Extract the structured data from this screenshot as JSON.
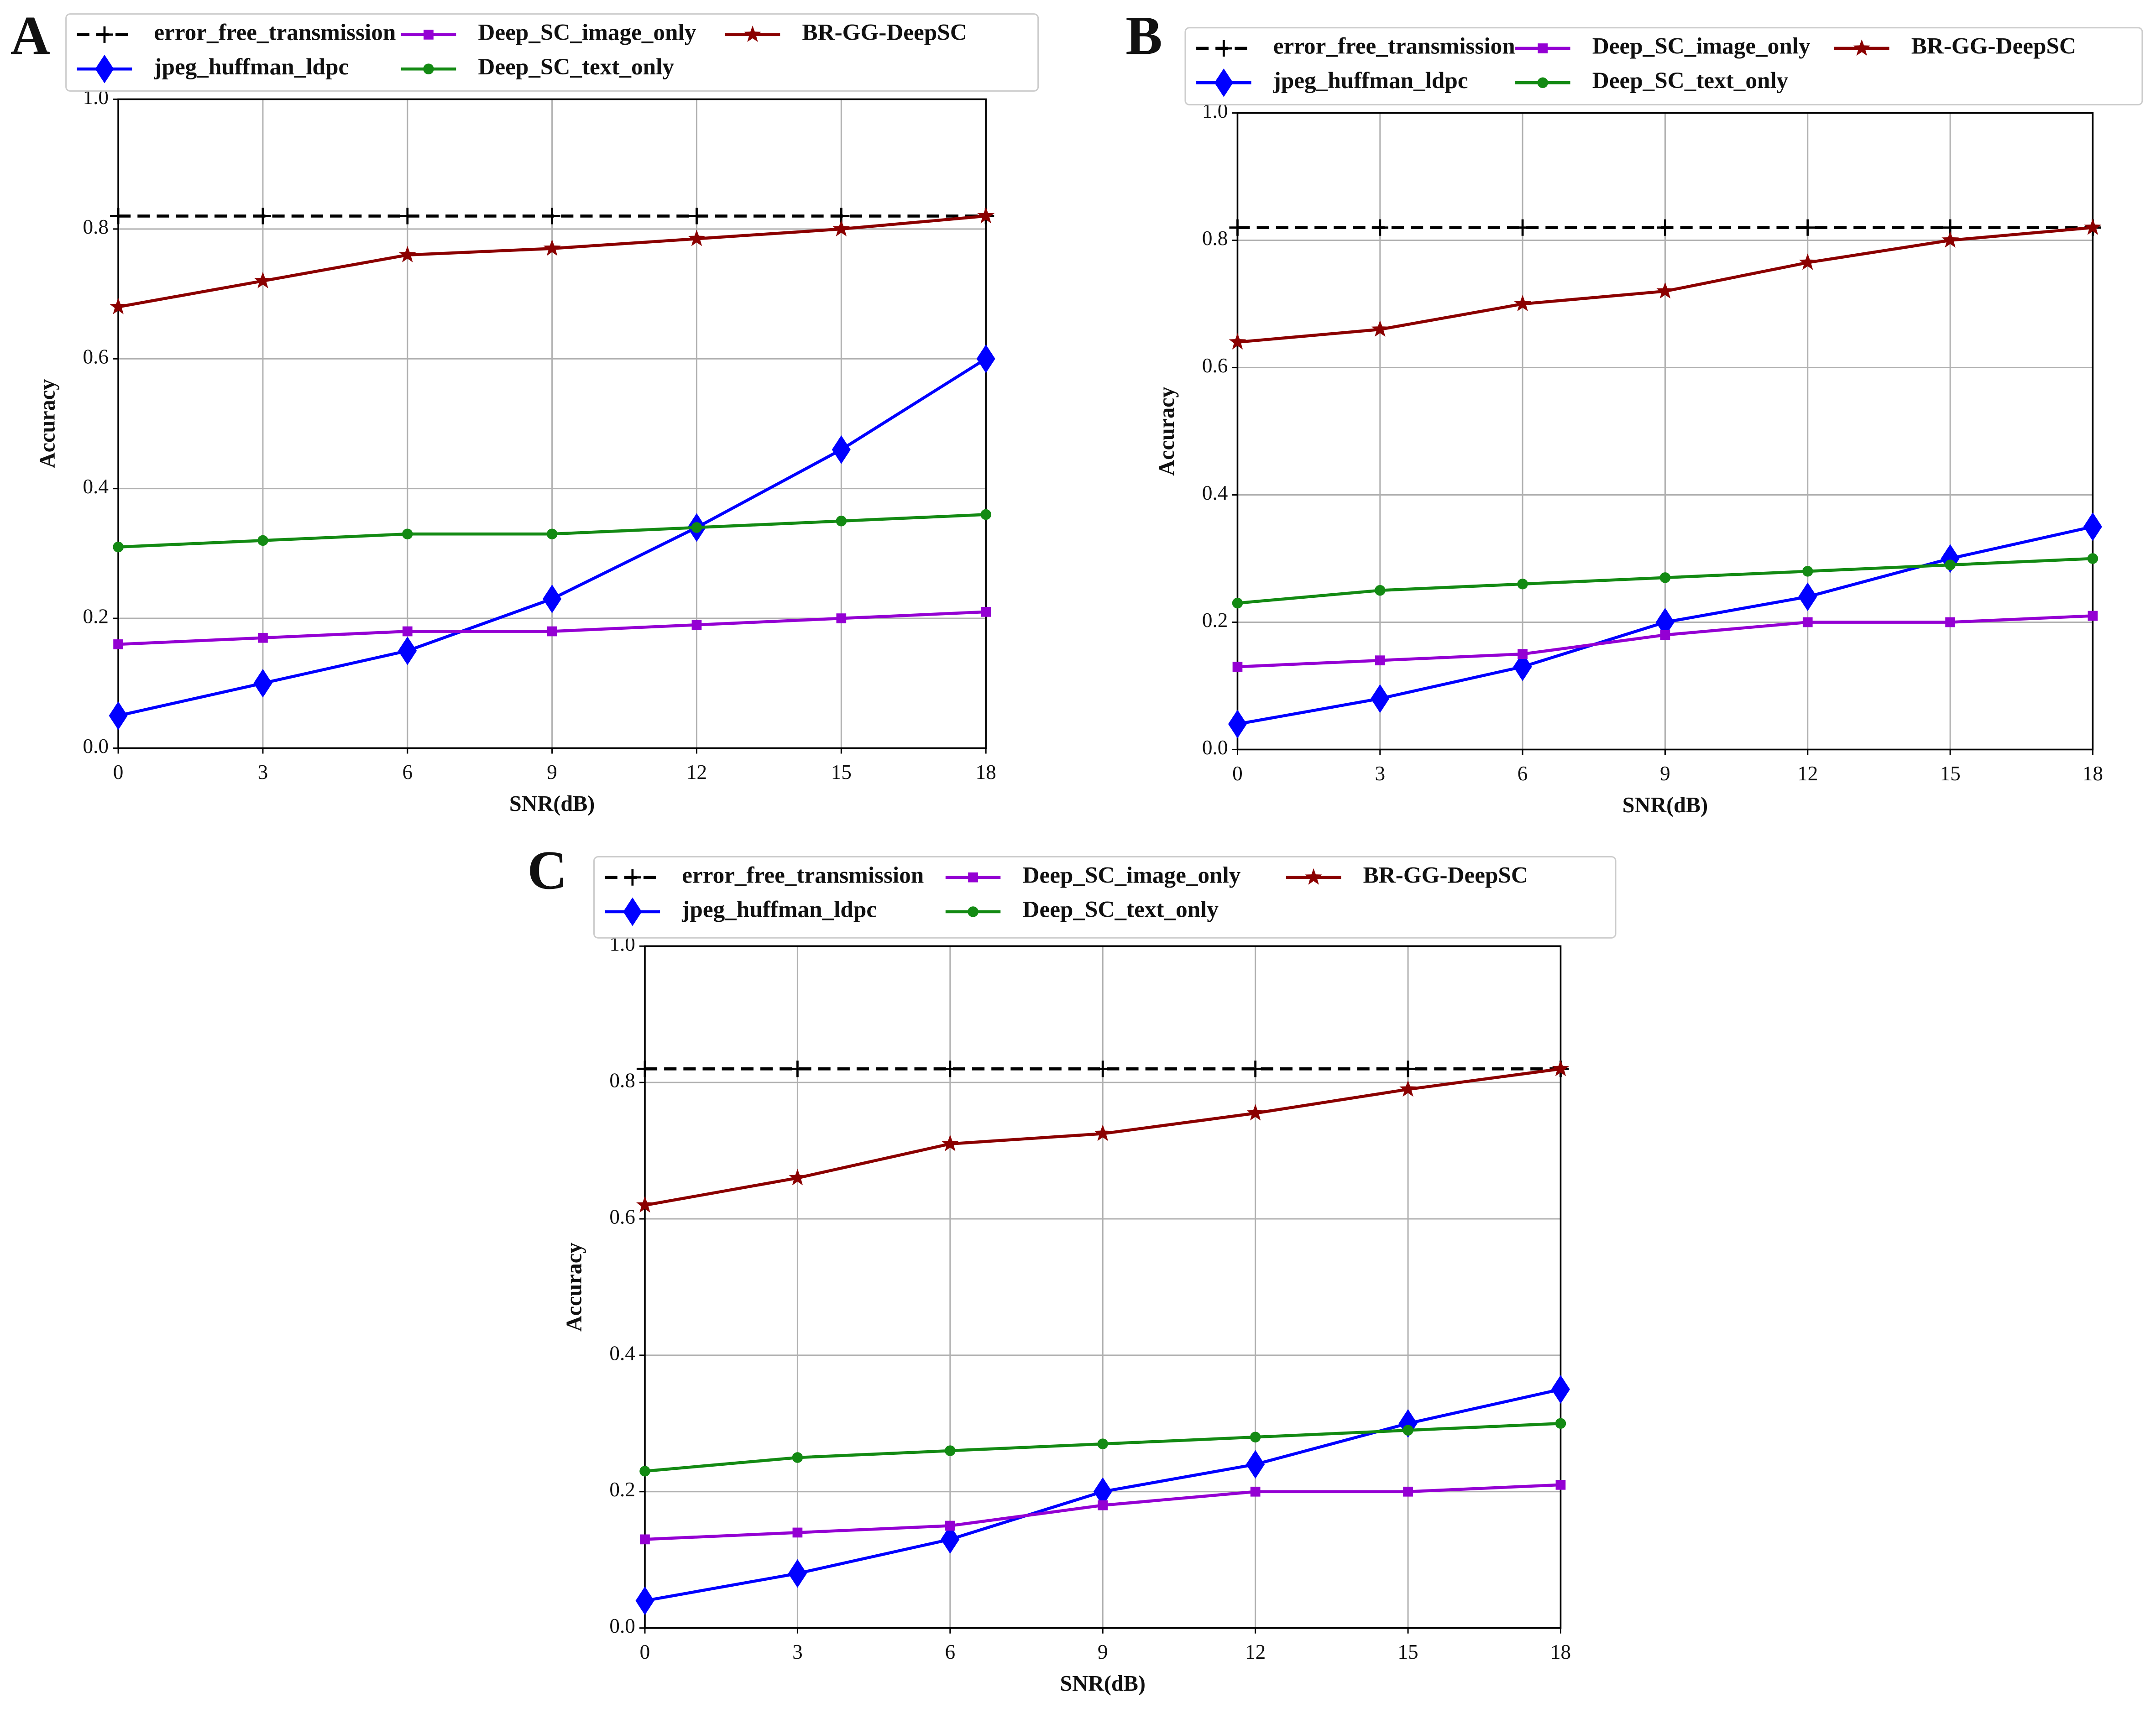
{
  "chart_data": [
    {
      "type": "line",
      "label": "A",
      "xlabel": "SNR(dB)",
      "ylabel": "Accuracy",
      "x": [
        0,
        3,
        6,
        9,
        12,
        15,
        18
      ],
      "xlim": [
        0,
        18
      ],
      "xticks": [
        0,
        3,
        6,
        9,
        12,
        15,
        18
      ],
      "ylim": [
        0,
        1
      ],
      "yticks": [
        {
          "value": 0,
          "label": "0.0"
        },
        0.2,
        0.4,
        0.6,
        0.8,
        {
          "value": 1,
          "label": "1.0"
        }
      ],
      "grid": true,
      "series": [
        {
          "name": "error_free_transmission",
          "color": "#000000",
          "marker": "plus",
          "linestyle": "dashed",
          "values": [
            0.82,
            0.82,
            0.82,
            0.82,
            0.82,
            0.82,
            0.82
          ]
        },
        {
          "name": "jpeg_huffman_ldpc",
          "color": "#0000ff",
          "marker": "diamond",
          "linestyle": "solid",
          "values": [
            0.05,
            0.1,
            0.15,
            0.23,
            0.34,
            0.46,
            0.6
          ]
        },
        {
          "name": "Deep_SC_image_only",
          "color": "#9400d3",
          "marker": "square",
          "linestyle": "solid",
          "values": [
            0.16,
            0.17,
            0.18,
            0.18,
            0.19,
            0.2,
            0.21
          ]
        },
        {
          "name": "Deep_SC_text_only",
          "color": "#138a13",
          "marker": "circle",
          "linestyle": "solid",
          "values": [
            0.31,
            0.32,
            0.33,
            0.33,
            0.34,
            0.35,
            0.36
          ]
        },
        {
          "name": "BR-GG-DeepSC",
          "color": "#8b0000",
          "marker": "star",
          "linestyle": "solid",
          "values": [
            0.68,
            0.72,
            0.76,
            0.77,
            0.785,
            0.8,
            0.82
          ]
        }
      ]
    },
    {
      "type": "line",
      "label": "B",
      "xlabel": "SNR(dB)",
      "ylabel": "Accuracy",
      "x": [
        0,
        3,
        6,
        9,
        12,
        15,
        18
      ],
      "xlim": [
        0,
        18
      ],
      "xticks": [
        0,
        3,
        6,
        9,
        12,
        15,
        18
      ],
      "ylim": [
        0,
        1
      ],
      "yticks": [
        {
          "value": 0,
          "label": "0.0"
        },
        0.2,
        0.4,
        0.6,
        0.8,
        {
          "value": 1,
          "label": "1.0"
        }
      ],
      "grid": true,
      "series": [
        {
          "name": "error_free_transmission",
          "color": "#000000",
          "marker": "plus",
          "linestyle": "dashed",
          "values": [
            0.82,
            0.82,
            0.82,
            0.82,
            0.82,
            0.82,
            0.82
          ]
        },
        {
          "name": "jpeg_huffman_ldpc",
          "color": "#0000ff",
          "marker": "diamond",
          "linestyle": "solid",
          "values": [
            0.04,
            0.08,
            0.13,
            0.2,
            0.24,
            0.3,
            0.35
          ]
        },
        {
          "name": "Deep_SC_image_only",
          "color": "#9400d3",
          "marker": "square",
          "linestyle": "solid",
          "values": [
            0.13,
            0.14,
            0.15,
            0.18,
            0.2,
            0.2,
            0.21
          ]
        },
        {
          "name": "Deep_SC_text_only",
          "color": "#138a13",
          "marker": "circle",
          "linestyle": "solid",
          "values": [
            0.23,
            0.25,
            0.26,
            0.27,
            0.28,
            0.29,
            0.3
          ]
        },
        {
          "name": "BR-GG-DeepSC",
          "color": "#8b0000",
          "marker": "star",
          "linestyle": "solid",
          "values": [
            0.64,
            0.66,
            0.7,
            0.72,
            0.765,
            0.8,
            0.82
          ]
        }
      ]
    },
    {
      "type": "line",
      "label": "C",
      "xlabel": "SNR(dB)",
      "ylabel": "Accuracy",
      "x": [
        0,
        3,
        6,
        9,
        12,
        15,
        18
      ],
      "xlim": [
        0,
        18
      ],
      "xticks": [
        0,
        3,
        6,
        9,
        12,
        15,
        18
      ],
      "ylim": [
        0,
        1
      ],
      "yticks": [
        {
          "value": 0,
          "label": "0.0"
        },
        0.2,
        0.4,
        0.6,
        0.8,
        {
          "value": 1,
          "label": "1.0"
        }
      ],
      "grid": true,
      "series": [
        {
          "name": "error_free_transmission",
          "color": "#000000",
          "marker": "plus",
          "linestyle": "dashed",
          "values": [
            0.82,
            0.82,
            0.82,
            0.82,
            0.82,
            0.82,
            0.82
          ]
        },
        {
          "name": "jpeg_huffman_ldpc",
          "color": "#0000ff",
          "marker": "diamond",
          "linestyle": "solid",
          "values": [
            0.04,
            0.08,
            0.13,
            0.2,
            0.24,
            0.3,
            0.35
          ]
        },
        {
          "name": "Deep_SC_image_only",
          "color": "#9400d3",
          "marker": "square",
          "linestyle": "solid",
          "values": [
            0.13,
            0.14,
            0.15,
            0.18,
            0.2,
            0.2,
            0.21
          ]
        },
        {
          "name": "Deep_SC_text_only",
          "color": "#138a13",
          "marker": "circle",
          "linestyle": "solid",
          "values": [
            0.23,
            0.25,
            0.26,
            0.27,
            0.28,
            0.29,
            0.3
          ]
        },
        {
          "name": "BR-GG-DeepSC",
          "color": "#8b0000",
          "marker": "star",
          "linestyle": "solid",
          "values": [
            0.62,
            0.66,
            0.71,
            0.725,
            0.755,
            0.79,
            0.82
          ]
        }
      ]
    }
  ]
}
